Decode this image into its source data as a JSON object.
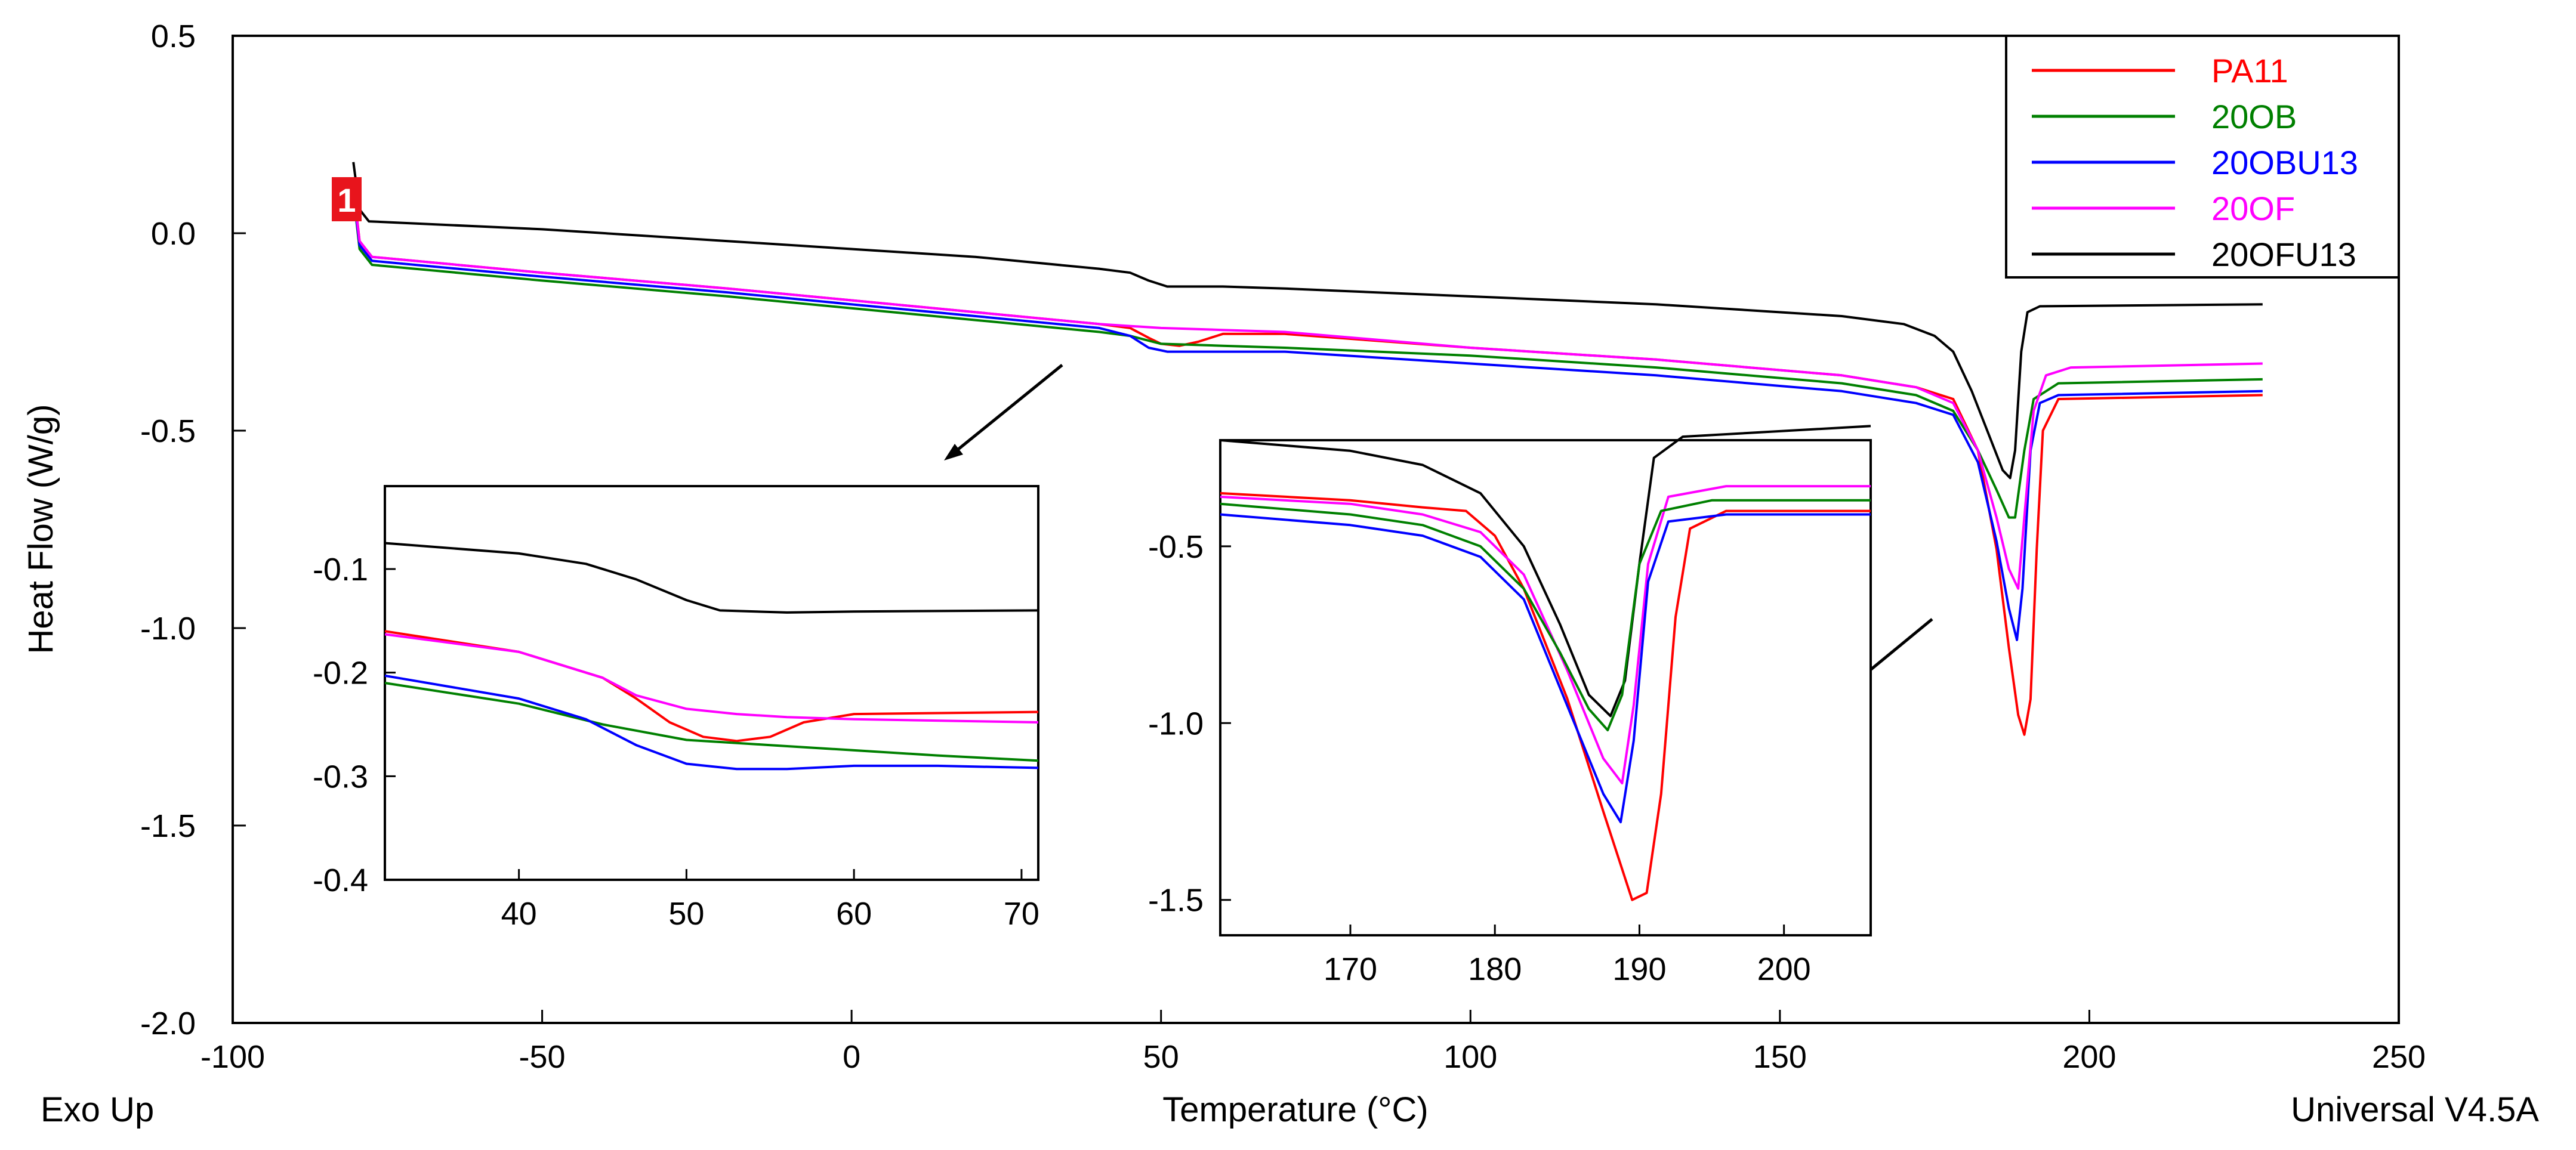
{
  "chart_data": {
    "type": "line",
    "xlabel": "Temperature (°C)",
    "ylabel": "Heat Flow (W/g)",
    "corner_left": "Exo Up",
    "corner_right": "Universal V4.5A",
    "marker_label": "1",
    "xlim": [
      -100,
      250
    ],
    "ylim": [
      -2.0,
      0.5
    ],
    "xticks": [
      -100,
      -50,
      0,
      50,
      100,
      150,
      200,
      250
    ],
    "yticks": [
      0.5,
      0.0,
      -0.5,
      -1.0,
      -1.5,
      -2.0
    ],
    "xtick_labels": [
      "-100",
      "-50",
      "0",
      "50",
      "100",
      "150",
      "200",
      "250"
    ],
    "ytick_labels": [
      "0.5",
      "0.0",
      "-0.5",
      "-1.0",
      "-1.5",
      "-2.0"
    ],
    "legend_position": "top-right",
    "series": [
      {
        "name": "PA11",
        "color": "#ff0000",
        "points": [
          [
            -80.5,
            0.12
          ],
          [
            -79.5,
            -0.02
          ],
          [
            -77.5,
            -0.06
          ],
          [
            -50,
            -0.1
          ],
          [
            -20,
            -0.14
          ],
          [
            0,
            -0.17
          ],
          [
            20,
            -0.2
          ],
          [
            40,
            -0.23
          ],
          [
            45,
            -0.24
          ],
          [
            48,
            -0.265
          ],
          [
            50,
            -0.28
          ],
          [
            53,
            -0.285
          ],
          [
            56,
            -0.275
          ],
          [
            60,
            -0.255
          ],
          [
            70,
            -0.255
          ],
          [
            100,
            -0.29
          ],
          [
            130,
            -0.32
          ],
          [
            160,
            -0.36
          ],
          [
            172,
            -0.39
          ],
          [
            178,
            -0.42
          ],
          [
            182,
            -0.55
          ],
          [
            185,
            -0.8
          ],
          [
            187,
            -1.05
          ],
          [
            188.5,
            -1.22
          ],
          [
            189.5,
            -1.27
          ],
          [
            190.5,
            -1.18
          ],
          [
            191.5,
            -0.8
          ],
          [
            192.5,
            -0.5
          ],
          [
            195,
            -0.42
          ],
          [
            228,
            -0.41
          ]
        ]
      },
      {
        "name": "20OB",
        "color": "#008000",
        "points": [
          [
            -80.5,
            0.1
          ],
          [
            -79.5,
            -0.04
          ],
          [
            -77.5,
            -0.08
          ],
          [
            -50,
            -0.12
          ],
          [
            -20,
            -0.16
          ],
          [
            0,
            -0.19
          ],
          [
            20,
            -0.22
          ],
          [
            40,
            -0.25
          ],
          [
            45,
            -0.26
          ],
          [
            50,
            -0.28
          ],
          [
            60,
            -0.285
          ],
          [
            70,
            -0.29
          ],
          [
            100,
            -0.31
          ],
          [
            130,
            -0.34
          ],
          [
            160,
            -0.38
          ],
          [
            172,
            -0.41
          ],
          [
            178,
            -0.45
          ],
          [
            182,
            -0.55
          ],
          [
            185,
            -0.65
          ],
          [
            187,
            -0.72
          ],
          [
            188,
            -0.72
          ],
          [
            189.5,
            -0.55
          ],
          [
            191,
            -0.42
          ],
          [
            195,
            -0.38
          ],
          [
            228,
            -0.37
          ]
        ]
      },
      {
        "name": "20OBU13",
        "color": "#0000ff",
        "points": [
          [
            -80.5,
            0.1
          ],
          [
            -79.5,
            -0.03
          ],
          [
            -77.5,
            -0.07
          ],
          [
            -50,
            -0.11
          ],
          [
            -20,
            -0.15
          ],
          [
            0,
            -0.18
          ],
          [
            20,
            -0.21
          ],
          [
            40,
            -0.24
          ],
          [
            45,
            -0.26
          ],
          [
            48,
            -0.29
          ],
          [
            51,
            -0.3
          ],
          [
            55,
            -0.3
          ],
          [
            60,
            -0.3
          ],
          [
            70,
            -0.3
          ],
          [
            100,
            -0.33
          ],
          [
            130,
            -0.36
          ],
          [
            160,
            -0.4
          ],
          [
            172,
            -0.43
          ],
          [
            178,
            -0.46
          ],
          [
            182,
            -0.58
          ],
          [
            185,
            -0.78
          ],
          [
            187,
            -0.95
          ],
          [
            188.3,
            -1.03
          ],
          [
            189.2,
            -0.9
          ],
          [
            190.5,
            -0.55
          ],
          [
            192,
            -0.43
          ],
          [
            195,
            -0.41
          ],
          [
            228,
            -0.4
          ]
        ]
      },
      {
        "name": "20OF",
        "color": "#ff00ff",
        "points": [
          [
            -80.5,
            0.11
          ],
          [
            -79.5,
            -0.02
          ],
          [
            -77.5,
            -0.06
          ],
          [
            -50,
            -0.1
          ],
          [
            -20,
            -0.14
          ],
          [
            0,
            -0.17
          ],
          [
            20,
            -0.2
          ],
          [
            40,
            -0.23
          ],
          [
            45,
            -0.235
          ],
          [
            50,
            -0.24
          ],
          [
            60,
            -0.245
          ],
          [
            70,
            -0.25
          ],
          [
            100,
            -0.29
          ],
          [
            130,
            -0.32
          ],
          [
            160,
            -0.36
          ],
          [
            172,
            -0.39
          ],
          [
            178,
            -0.43
          ],
          [
            182,
            -0.55
          ],
          [
            185,
            -0.72
          ],
          [
            187,
            -0.85
          ],
          [
            188.5,
            -0.9
          ],
          [
            189.6,
            -0.7
          ],
          [
            191,
            -0.45
          ],
          [
            193,
            -0.36
          ],
          [
            197,
            -0.34
          ],
          [
            228,
            -0.33
          ]
        ]
      },
      {
        "name": "20OFU13",
        "color": "#000000",
        "points": [
          [
            -80.5,
            0.18
          ],
          [
            -79.5,
            0.06
          ],
          [
            -78,
            0.03
          ],
          [
            -50,
            0.01
          ],
          [
            -20,
            -0.02
          ],
          [
            0,
            -0.04
          ],
          [
            20,
            -0.06
          ],
          [
            40,
            -0.09
          ],
          [
            45,
            -0.1
          ],
          [
            48,
            -0.12
          ],
          [
            51,
            -0.135
          ],
          [
            55,
            -0.135
          ],
          [
            60,
            -0.135
          ],
          [
            70,
            -0.14
          ],
          [
            100,
            -0.16
          ],
          [
            130,
            -0.18
          ],
          [
            160,
            -0.21
          ],
          [
            170,
            -0.23
          ],
          [
            175,
            -0.26
          ],
          [
            178,
            -0.3
          ],
          [
            181,
            -0.4
          ],
          [
            184,
            -0.52
          ],
          [
            186,
            -0.6
          ],
          [
            187.2,
            -0.62
          ],
          [
            188,
            -0.55
          ],
          [
            189,
            -0.3
          ],
          [
            190,
            -0.2
          ],
          [
            192,
            -0.185
          ],
          [
            228,
            -0.18
          ]
        ]
      }
    ],
    "inset_left": {
      "xlim": [
        32,
        71
      ],
      "ylim": [
        -0.4,
        -0.02
      ],
      "xticks": [
        40,
        50,
        60,
        70
      ],
      "yticks": [
        -0.1,
        -0.2,
        -0.3,
        -0.4
      ],
      "xtick_labels": [
        "40",
        "50",
        "60",
        "70"
      ],
      "ytick_labels": [
        "-0.1",
        "-0.2",
        "-0.3",
        "-0.4"
      ],
      "series": [
        {
          "name": "20OFU13",
          "points": [
            [
              32,
              -0.075
            ],
            [
              40,
              -0.085
            ],
            [
              44,
              -0.095
            ],
            [
              47,
              -0.11
            ],
            [
              50,
              -0.13
            ],
            [
              52,
              -0.14
            ],
            [
              56,
              -0.142
            ],
            [
              60,
              -0.141
            ],
            [
              71,
              -0.14
            ]
          ]
        },
        {
          "name": "PA11",
          "points": [
            [
              32,
              -0.16
            ],
            [
              40,
              -0.18
            ],
            [
              45,
              -0.205
            ],
            [
              47,
              -0.225
            ],
            [
              49,
              -0.248
            ],
            [
              51,
              -0.262
            ],
            [
              53,
              -0.266
            ],
            [
              55,
              -0.262
            ],
            [
              57,
              -0.248
            ],
            [
              60,
              -0.24
            ],
            [
              71,
              -0.238
            ]
          ]
        },
        {
          "name": "20OF",
          "points": [
            [
              32,
              -0.163
            ],
            [
              40,
              -0.18
            ],
            [
              45,
              -0.205
            ],
            [
              47,
              -0.222
            ],
            [
              50,
              -0.235
            ],
            [
              53,
              -0.24
            ],
            [
              56,
              -0.243
            ],
            [
              60,
              -0.245
            ],
            [
              71,
              -0.248
            ]
          ]
        },
        {
          "name": "20OB",
          "points": [
            [
              32,
              -0.21
            ],
            [
              40,
              -0.23
            ],
            [
              45,
              -0.25
            ],
            [
              50,
              -0.265
            ],
            [
              55,
              -0.27
            ],
            [
              60,
              -0.275
            ],
            [
              65,
              -0.28
            ],
            [
              71,
              -0.285
            ]
          ]
        },
        {
          "name": "20OBU13",
          "points": [
            [
              32,
              -0.203
            ],
            [
              40,
              -0.225
            ],
            [
              44,
              -0.245
            ],
            [
              47,
              -0.27
            ],
            [
              50,
              -0.288
            ],
            [
              53,
              -0.293
            ],
            [
              56,
              -0.293
            ],
            [
              60,
              -0.29
            ],
            [
              65,
              -0.29
            ],
            [
              71,
              -0.292
            ]
          ]
        }
      ]
    },
    "inset_right": {
      "xlim": [
        161,
        206
      ],
      "ylim": [
        -1.6,
        -0.2
      ],
      "xticks": [
        170,
        180,
        190,
        200
      ],
      "yticks": [
        -0.5,
        -1.0,
        -1.5
      ],
      "xtick_labels": [
        "170",
        "180",
        "190",
        "200"
      ],
      "ytick_labels": [
        "-0.5",
        "-1.0",
        "-1.5"
      ],
      "series": [
        {
          "name": "20OFU13",
          "points": [
            [
              161,
              -0.2
            ],
            [
              170,
              -0.23
            ],
            [
              175,
              -0.27
            ],
            [
              179,
              -0.35
            ],
            [
              182,
              -0.5
            ],
            [
              184.5,
              -0.72
            ],
            [
              186.5,
              -0.92
            ],
            [
              188,
              -0.98
            ],
            [
              189,
              -0.88
            ],
            [
              190,
              -0.55
            ],
            [
              191,
              -0.25
            ],
            [
              193,
              -0.19
            ],
            [
              206,
              -0.16
            ]
          ]
        },
        {
          "name": "PA11",
          "points": [
            [
              161,
              -0.35
            ],
            [
              170,
              -0.37
            ],
            [
              175,
              -0.39
            ],
            [
              178,
              -0.4
            ],
            [
              180,
              -0.47
            ],
            [
              182,
              -0.62
            ],
            [
              185,
              -0.93
            ],
            [
              187.5,
              -1.25
            ],
            [
              189.5,
              -1.5
            ],
            [
              190.5,
              -1.48
            ],
            [
              191.5,
              -1.2
            ],
            [
              192.5,
              -0.7
            ],
            [
              193.5,
              -0.45
            ],
            [
              196,
              -0.4
            ],
            [
              206,
              -0.4
            ]
          ]
        },
        {
          "name": "20OF",
          "points": [
            [
              161,
              -0.36
            ],
            [
              170,
              -0.38
            ],
            [
              175,
              -0.41
            ],
            [
              179,
              -0.46
            ],
            [
              182,
              -0.58
            ],
            [
              185,
              -0.85
            ],
            [
              187.5,
              -1.1
            ],
            [
              188.8,
              -1.17
            ],
            [
              189.6,
              -0.95
            ],
            [
              190.6,
              -0.55
            ],
            [
              192,
              -0.36
            ],
            [
              196,
              -0.33
            ],
            [
              206,
              -0.33
            ]
          ]
        },
        {
          "name": "20OB",
          "points": [
            [
              161,
              -0.38
            ],
            [
              170,
              -0.41
            ],
            [
              175,
              -0.44
            ],
            [
              179,
              -0.5
            ],
            [
              182,
              -0.62
            ],
            [
              184.5,
              -0.8
            ],
            [
              186.5,
              -0.96
            ],
            [
              187.8,
              -1.02
            ],
            [
              188.8,
              -0.92
            ],
            [
              190,
              -0.55
            ],
            [
              191.5,
              -0.4
            ],
            [
              195,
              -0.37
            ],
            [
              206,
              -0.37
            ]
          ]
        },
        {
          "name": "20OBU13",
          "points": [
            [
              161,
              -0.41
            ],
            [
              170,
              -0.44
            ],
            [
              175,
              -0.47
            ],
            [
              179,
              -0.53
            ],
            [
              182,
              -0.65
            ],
            [
              185,
              -0.95
            ],
            [
              187.5,
              -1.2
            ],
            [
              188.7,
              -1.28
            ],
            [
              189.6,
              -1.05
            ],
            [
              190.6,
              -0.6
            ],
            [
              192,
              -0.43
            ],
            [
              196,
              -0.41
            ],
            [
              206,
              -0.41
            ]
          ]
        }
      ]
    }
  }
}
